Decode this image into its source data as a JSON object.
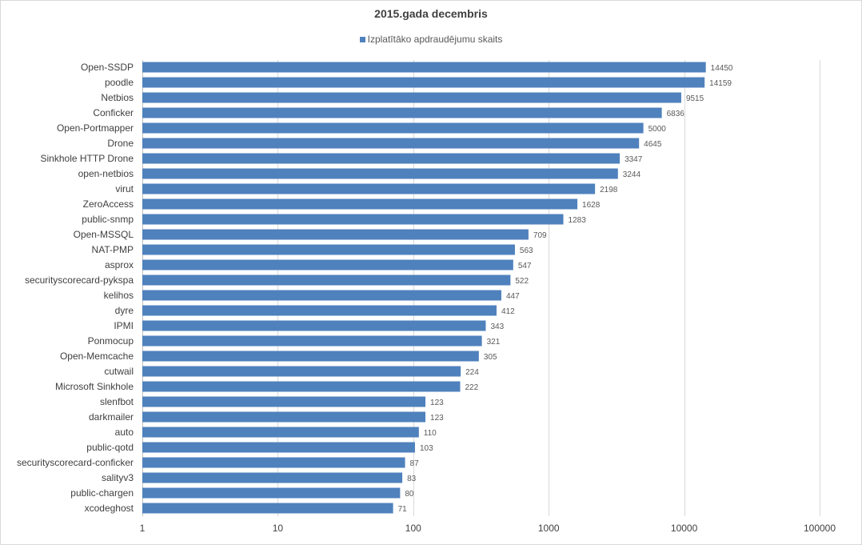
{
  "chart_data": {
    "type": "bar",
    "orientation": "horizontal",
    "title": "2015.gada decembris",
    "legend_position": "top",
    "scale": "log",
    "xlim": [
      1,
      100000
    ],
    "ticks": [
      "1",
      "10",
      "100",
      "1000",
      "10000",
      "100000"
    ],
    "tick_values": [
      1,
      10,
      100,
      1000,
      10000,
      100000
    ],
    "grid": true,
    "bar_color": "#4f81bd",
    "series": [
      {
        "name": "Izplatītāko apdraudējumu skaits",
        "values": [
          14450,
          14159,
          9515,
          6836,
          5000,
          4645,
          3347,
          3244,
          2198,
          1628,
          1283,
          709,
          563,
          547,
          522,
          447,
          412,
          343,
          321,
          305,
          224,
          222,
          123,
          123,
          110,
          103,
          87,
          83,
          80,
          71
        ]
      }
    ],
    "categories": [
      "Open-SSDP",
      "poodle",
      "Netbios",
      "Conficker",
      "Open-Portmapper",
      "Drone",
      "Sinkhole HTTP Drone",
      "open-netbios",
      "virut",
      "ZeroAccess",
      "public-snmp",
      "Open-MSSQL",
      "NAT-PMP",
      "asprox",
      "securityscorecard-pykspa",
      "kelihos",
      "dyre",
      "IPMI",
      "Ponmocup",
      "Open-Memcache",
      "cutwail",
      "Microsoft Sinkhole",
      "slenfbot",
      "darkmailer",
      "auto",
      "public-qotd",
      "securityscorecard-conficker",
      "salityv3",
      "public-chargen",
      "xcodeghost"
    ]
  }
}
